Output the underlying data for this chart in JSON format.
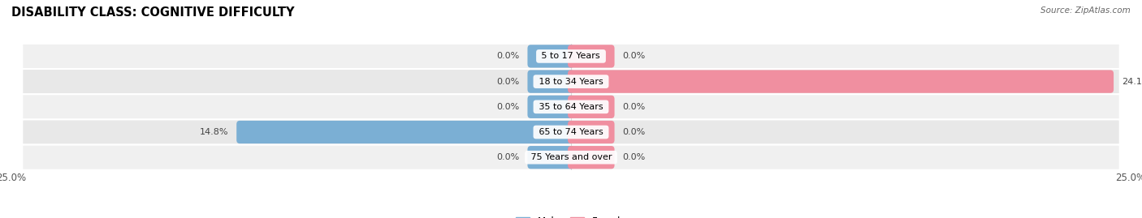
{
  "title": "DISABILITY CLASS: COGNITIVE DIFFICULTY",
  "source": "Source: ZipAtlas.com",
  "categories": [
    "5 to 17 Years",
    "18 to 34 Years",
    "35 to 64 Years",
    "65 to 74 Years",
    "75 Years and over"
  ],
  "male_values": [
    0.0,
    0.0,
    0.0,
    14.8,
    0.0
  ],
  "female_values": [
    0.0,
    24.1,
    0.0,
    0.0,
    0.0
  ],
  "male_color": "#7bafd4",
  "female_color": "#f08fa0",
  "row_bg_even": "#f0f0f0",
  "row_bg_odd": "#e8e8e8",
  "xlim": 25.0,
  "bar_height": 0.62,
  "title_fontsize": 10.5,
  "label_fontsize": 8.0,
  "cat_fontsize": 8.0,
  "axis_label_fontsize": 8.5,
  "source_fontsize": 7.5,
  "legend_fontsize": 8.5
}
